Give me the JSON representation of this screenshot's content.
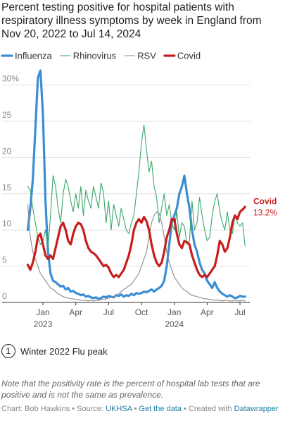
{
  "chart_data": {
    "type": "line",
    "title": "Percent testing positive for hospital patients with respiratory illness symptoms by week in England from Nov 20, 2022 to Jul 14, 2024",
    "xlim": [
      -2,
      88
    ],
    "xticks": [
      {
        "value": 6,
        "label": "Jan 2023"
      },
      {
        "value": 19,
        "label": "Apr"
      },
      {
        "value": 32,
        "label": "Jul"
      },
      {
        "value": 45,
        "label": "Oct"
      },
      {
        "value": 58,
        "label": "Jan 2024"
      },
      {
        "value": 71,
        "label": "Apr"
      },
      {
        "value": 84,
        "label": "Jul"
      }
    ],
    "ylim": [
      0,
      32
    ],
    "yticks": [
      0,
      5,
      10,
      15,
      20,
      25,
      {
        "value": 30,
        "label": "30%"
      }
    ],
    "grid": true,
    "series": [
      {
        "name": "Influenza",
        "color": "#3b8ed6",
        "values": [
          10,
          13,
          17,
          24,
          31,
          32,
          26,
          14,
          7,
          4,
          3,
          2.8,
          2.5,
          2.2,
          2.3,
          1.8,
          2,
          1.5,
          1.6,
          1.3,
          1.2,
          1,
          1.1,
          0.8,
          0.9,
          0.7,
          0.6,
          0.7,
          0.5,
          0.6,
          0.8,
          0.7,
          0.9,
          0.8,
          0.7,
          1,
          0.9,
          1.1,
          0.8,
          1,
          0.9,
          1.2,
          1,
          1.3,
          1.2,
          1.3,
          1.5,
          1.4,
          1.6,
          1.8,
          1.5,
          1.8,
          2,
          2.3,
          3,
          5,
          8,
          11,
          12,
          13,
          15,
          16,
          17.5,
          15,
          13,
          10,
          8,
          7,
          5.5,
          4.5,
          4,
          3,
          2.5,
          2,
          2.8,
          2,
          1.5,
          1.2,
          1,
          0.8,
          1,
          0.8,
          0.6,
          0.7,
          0.9,
          0.8,
          0.8
        ]
      },
      {
        "name": "Rhinovirus",
        "color": "#3aa769",
        "values": [
          16,
          15.5,
          13,
          11,
          9,
          8,
          8.5,
          10,
          7.5,
          12,
          17.5,
          16,
          13,
          11,
          15,
          17,
          16,
          14,
          12.5,
          15,
          13,
          16,
          12,
          15.5,
          14,
          13,
          16,
          14.5,
          13,
          16.5,
          15,
          11,
          14,
          10,
          13.5,
          12,
          10.5,
          13,
          11.5,
          10,
          9.5,
          11,
          12,
          15,
          18,
          22,
          24.5,
          21,
          18,
          19.5,
          16,
          14.5,
          11,
          13,
          15,
          12,
          13.5,
          11,
          10,
          12.5,
          9,
          11,
          10.5,
          8,
          8.5,
          14,
          10,
          11,
          14.5,
          12,
          10,
          8.5,
          9,
          12,
          14,
          15,
          12.5,
          11,
          10,
          12.5,
          10,
          9.5,
          12,
          11,
          10.5,
          11,
          7.8
        ]
      },
      {
        "name": "RSV",
        "color": "#8c8c8c",
        "values": [
          13.5,
          9,
          7,
          6,
          5,
          4,
          3.5,
          3,
          2.5,
          2,
          1.8,
          1.5,
          1.2,
          1,
          0.8,
          0.7,
          0.6,
          0.5,
          0.5,
          0.4,
          0.4,
          0.3,
          0.3,
          0.3,
          0.2,
          0.3,
          0.2,
          0.3,
          0.3,
          0.4,
          0.4,
          0.5,
          0.6,
          0.7,
          0.8,
          1,
          1.2,
          1.5,
          1.8,
          2,
          2.3,
          2.5,
          3,
          3.5,
          4,
          5,
          6,
          7,
          9,
          11,
          12,
          12.5,
          12.3,
          11,
          9,
          7,
          5.5,
          4.5,
          3.5,
          3,
          2.5,
          2,
          1.7,
          1.5,
          1.2,
          1,
          0.9,
          0.8,
          0.7,
          0.6,
          0.5,
          0.5,
          0.4,
          0.4,
          0.3,
          0.3,
          0.3,
          0.2,
          0.3,
          0.3,
          0.2,
          0.2,
          0.3,
          0.2,
          0.2,
          0.3,
          0.2
        ]
      },
      {
        "name": "Covid",
        "color": "#c71e1d",
        "values": [
          5.2,
          4.5,
          5.5,
          7,
          9,
          9.5,
          8,
          6.5,
          6,
          6.5,
          6,
          7.5,
          9,
          10.5,
          11,
          10,
          8.5,
          8,
          9.5,
          10.5,
          11,
          10.8,
          10,
          8.5,
          7.5,
          7,
          6.8,
          6.5,
          6,
          5.5,
          5,
          5.2,
          4.8,
          4,
          3.5,
          3.8,
          3.5,
          4,
          4.5,
          5.5,
          6.5,
          8,
          10,
          11,
          11.5,
          11,
          11.8,
          11.2,
          10,
          8,
          6.5,
          5.5,
          5,
          5.5,
          7,
          9,
          10,
          11.5,
          11.5,
          9.5,
          8,
          7.5,
          8.5,
          8.3,
          8,
          6.5,
          5.5,
          4.5,
          3.8,
          3.5,
          3.8,
          3.5,
          4,
          4.5,
          5,
          6.5,
          8.5,
          8,
          7,
          7.5,
          9,
          11,
          12,
          11.5,
          12.5,
          12.8,
          13.2
        ],
        "value_labels": [
          null,
          null,
          null,
          null,
          null,
          null,
          null,
          null,
          null,
          null,
          null,
          null,
          null,
          null,
          null,
          null,
          null,
          null,
          null,
          null,
          null,
          null,
          null,
          null,
          null,
          null,
          null,
          null,
          null,
          null,
          null,
          null,
          null,
          null,
          null,
          null,
          null,
          null,
          null,
          null,
          null,
          null,
          null,
          null,
          null,
          null,
          null,
          null,
          null,
          null,
          null,
          null,
          null,
          null,
          null,
          null,
          null,
          null,
          null,
          null,
          null,
          null,
          null,
          null,
          null,
          null,
          null,
          null,
          null,
          null,
          null,
          null,
          null,
          null,
          null,
          null,
          null,
          null,
          null,
          null,
          null,
          null,
          null,
          null,
          null,
          null,
          "13.2%"
        ]
      }
    ],
    "annotations": [
      {
        "marker": "1",
        "text": "Winter 2022 Flu peak"
      }
    ],
    "note": "Note that the positivity rate is the percent of hospital lab tests that are positive and is not the same as prevalence.",
    "footer": [
      "Chart: Bob Hawkins • Source: ",
      "UKHSA",
      " • ",
      "Get the data",
      " • Created with ",
      "Datawrapper"
    ]
  }
}
